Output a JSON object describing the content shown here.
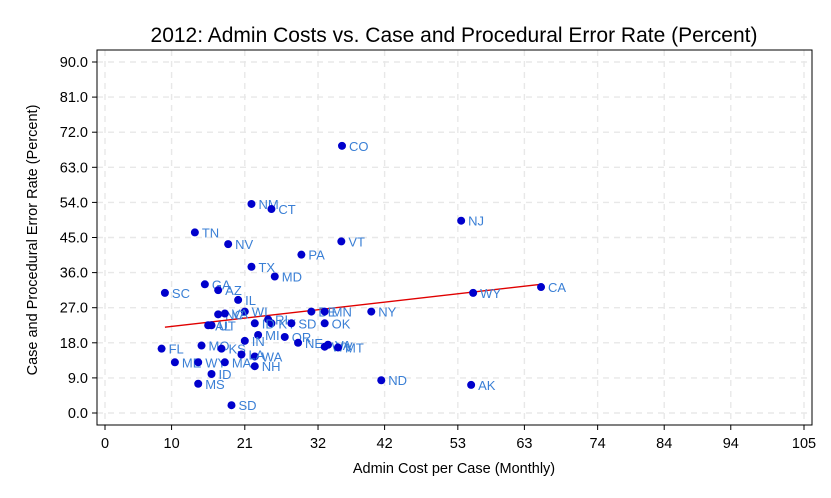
{
  "chart_data": {
    "type": "scatter",
    "title": "2012: Admin Costs vs. Case and Procedural Error Rate (Percent)",
    "xlabel": "Admin Cost per Case (Monthly)",
    "ylabel": "Case and Procedural Error Rate (Percent)",
    "xlim": [
      0,
      105
    ],
    "ylim": [
      0,
      90
    ],
    "x_ticks": [
      0,
      10,
      21,
      32,
      42,
      53,
      63,
      74,
      84,
      94,
      105
    ],
    "y_ticks": [
      "0.0",
      "9.0",
      "18.0",
      "27.0",
      "36.0",
      "45.0",
      "54.0",
      "63.0",
      "72.0",
      "81.0",
      "90.0"
    ],
    "grid": true,
    "colors": {
      "points": "#0000cc",
      "labels": "#3a7fd5",
      "fit_line": "#e00000",
      "grid": "#e8e8e8"
    },
    "points": [
      {
        "label": "CO",
        "x": 35.6,
        "y": 68.5
      },
      {
        "label": "NM",
        "x": 22.0,
        "y": 53.6
      },
      {
        "label": "CT",
        "x": 25.0,
        "y": 52.3
      },
      {
        "label": "NJ",
        "x": 53.5,
        "y": 49.3
      },
      {
        "label": "TN",
        "x": 13.5,
        "y": 46.3
      },
      {
        "label": "NV",
        "x": 18.5,
        "y": 43.3
      },
      {
        "label": "VT",
        "x": 35.5,
        "y": 44.0
      },
      {
        "label": "PA",
        "x": 29.5,
        "y": 40.6
      },
      {
        "label": "TX",
        "x": 22.0,
        "y": 37.5
      },
      {
        "label": "MD",
        "x": 25.5,
        "y": 35.0
      },
      {
        "label": "GA",
        "x": 15.0,
        "y": 33.0
      },
      {
        "label": "AZ",
        "x": 17.0,
        "y": 31.5
      },
      {
        "label": "SC",
        "x": 9.0,
        "y": 30.8
      },
      {
        "label": "IL",
        "x": 20.0,
        "y": 29.0
      },
      {
        "label": "WY",
        "x": 55.3,
        "y": 30.8
      },
      {
        "label": "CA",
        "x": 65.5,
        "y": 32.3
      },
      {
        "label": "NY",
        "x": 40.0,
        "y": 26.0
      },
      {
        "label": "WI",
        "x": 21.0,
        "y": 26.0
      },
      {
        "label": "NC",
        "x": 17.0,
        "y": 25.3
      },
      {
        "label": "VA",
        "x": 18.0,
        "y": 25.5
      },
      {
        "label": "DE",
        "x": 31.0,
        "y": 26.0
      },
      {
        "label": "MN",
        "x": 33.0,
        "y": 26.0
      },
      {
        "label": "OK",
        "x": 33.0,
        "y": 23.0
      },
      {
        "label": "RI",
        "x": 24.5,
        "y": 24.0
      },
      {
        "label": "KY",
        "x": 25.0,
        "y": 23.0
      },
      {
        "label": "ID",
        "x": 22.5,
        "y": 23.0
      },
      {
        "label": "SD",
        "x": 28.0,
        "y": 23.0
      },
      {
        "label": "UT",
        "x": 16.0,
        "y": 22.5
      },
      {
        "label": "AL",
        "x": 15.5,
        "y": 22.5
      },
      {
        "label": "MI",
        "x": 23.0,
        "y": 20.0
      },
      {
        "label": "OR",
        "x": 27.0,
        "y": 19.5
      },
      {
        "label": "IN",
        "x": 21.0,
        "y": 18.5
      },
      {
        "label": "NE",
        "x": 29.0,
        "y": 18.0
      },
      {
        "label": "VA",
        "x": 33.5,
        "y": 17.5
      },
      {
        "label": "WV",
        "x": 33.0,
        "y": 17.0
      },
      {
        "label": "MT",
        "x": 35.0,
        "y": 16.8
      },
      {
        "label": "MO",
        "x": 14.5,
        "y": 17.3
      },
      {
        "label": "KS",
        "x": 17.5,
        "y": 16.5
      },
      {
        "label": "FL",
        "x": 8.5,
        "y": 16.5
      },
      {
        "label": "WA",
        "x": 22.5,
        "y": 14.5
      },
      {
        "label": "LA",
        "x": 20.5,
        "y": 15.0
      },
      {
        "label": "ME",
        "x": 10.5,
        "y": 13.0
      },
      {
        "label": "WY",
        "x": 14.0,
        "y": 13.0
      },
      {
        "label": "MA",
        "x": 18.0,
        "y": 13.0
      },
      {
        "label": "NH",
        "x": 22.5,
        "y": 12.0
      },
      {
        "label": "ND",
        "x": 41.5,
        "y": 8.4
      },
      {
        "label": "ID",
        "x": 16.0,
        "y": 10.0
      },
      {
        "label": "MS",
        "x": 14.0,
        "y": 7.5
      },
      {
        "label": "AK",
        "x": 55.0,
        "y": 7.2
      },
      {
        "label": "SD",
        "x": 19.0,
        "y": 2.0
      }
    ],
    "fit_line": {
      "x": [
        9.0,
        65.5
      ],
      "y": [
        22.0,
        33.0
      ]
    }
  }
}
